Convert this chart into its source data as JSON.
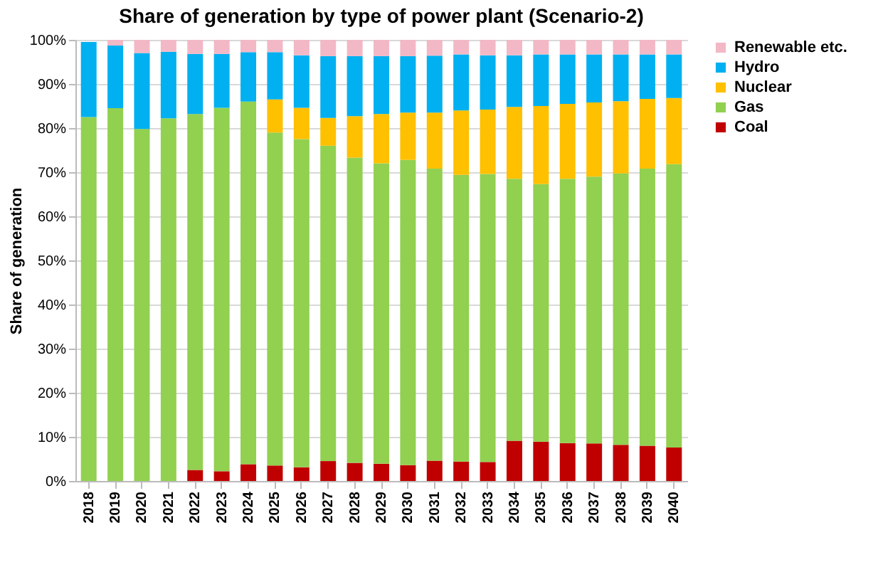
{
  "chart_data": {
    "type": "bar",
    "stacked": true,
    "title": "Share of generation by type of power plant (Scenario-2)",
    "ylabel": "Share of generation",
    "categories": [
      "2018",
      "2019",
      "2020",
      "2021",
      "2022",
      "2023",
      "2024",
      "2025",
      "2026",
      "2027",
      "2028",
      "2029",
      "2030",
      "2031",
      "2032",
      "2033",
      "2034",
      "2035",
      "2036",
      "2037",
      "2038",
      "2039",
      "2040"
    ],
    "series": [
      {
        "name": "Coal",
        "color": "#c00000",
        "values": [
          0,
          0,
          0,
          0,
          2.5,
          2.2,
          3.8,
          3.5,
          3.1,
          4.5,
          4.1,
          3.9,
          3.6,
          4.6,
          4.4,
          4.3,
          9.1,
          8.9,
          8.6,
          8.5,
          8.2,
          8,
          7.6
        ]
      },
      {
        "name": "Gas",
        "color": "#92d050",
        "values": [
          82.5,
          84.5,
          79.8,
          82.2,
          80.7,
          82.4,
          82.2,
          75.5,
          74.4,
          71.5,
          69.2,
          68.1,
          69.2,
          66.2,
          65,
          65.3,
          59.4,
          58.4,
          59.9,
          60.5,
          61.5,
          62.8,
          64.2
        ]
      },
      {
        "name": "Nuclear",
        "color": "#ffc000",
        "values": [
          0,
          0,
          0,
          0,
          0,
          0,
          0,
          7.5,
          7.1,
          6.3,
          9.4,
          11.2,
          10.7,
          12.7,
          14.6,
          14.6,
          16.3,
          17.7,
          17,
          16.8,
          16.4,
          15.8,
          15
        ]
      },
      {
        "name": "Hydro",
        "color": "#00b0f0",
        "values": [
          17,
          14.2,
          17.2,
          15.1,
          13.6,
          12.2,
          11.2,
          10.7,
          11.9,
          14,
          13.6,
          13.1,
          12.8,
          12.9,
          12.7,
          12.3,
          11.7,
          11.7,
          11.2,
          10.9,
          10.6,
          10.1,
          9.9
        ]
      },
      {
        "name": "Renewable etc.",
        "color": "#f2b8c6",
        "values": [
          null,
          1.3,
          3,
          2.7,
          3.2,
          3.2,
          2.8,
          2.8,
          3.5,
          3.7,
          3.7,
          3.7,
          3.7,
          3.6,
          3.3,
          3.5,
          3.5,
          3.3,
          3.3,
          3.3,
          3.3,
          3.3,
          3.3
        ]
      }
    ],
    "ylim": [
      0,
      100
    ],
    "yticks": [
      {
        "value": 0,
        "label": "0%"
      },
      {
        "value": 10,
        "label": "10%"
      },
      {
        "value": 20,
        "label": "20%"
      },
      {
        "value": 30,
        "label": "30%"
      },
      {
        "value": 40,
        "label": "40%"
      },
      {
        "value": 50,
        "label": "50%"
      },
      {
        "value": 60,
        "label": "60%"
      },
      {
        "value": 70,
        "label": "70%"
      },
      {
        "value": 80,
        "label": "80%"
      },
      {
        "value": 90,
        "label": "90%"
      },
      {
        "value": 100,
        "label": "100%"
      }
    ],
    "grid": "y",
    "legend": "right"
  }
}
